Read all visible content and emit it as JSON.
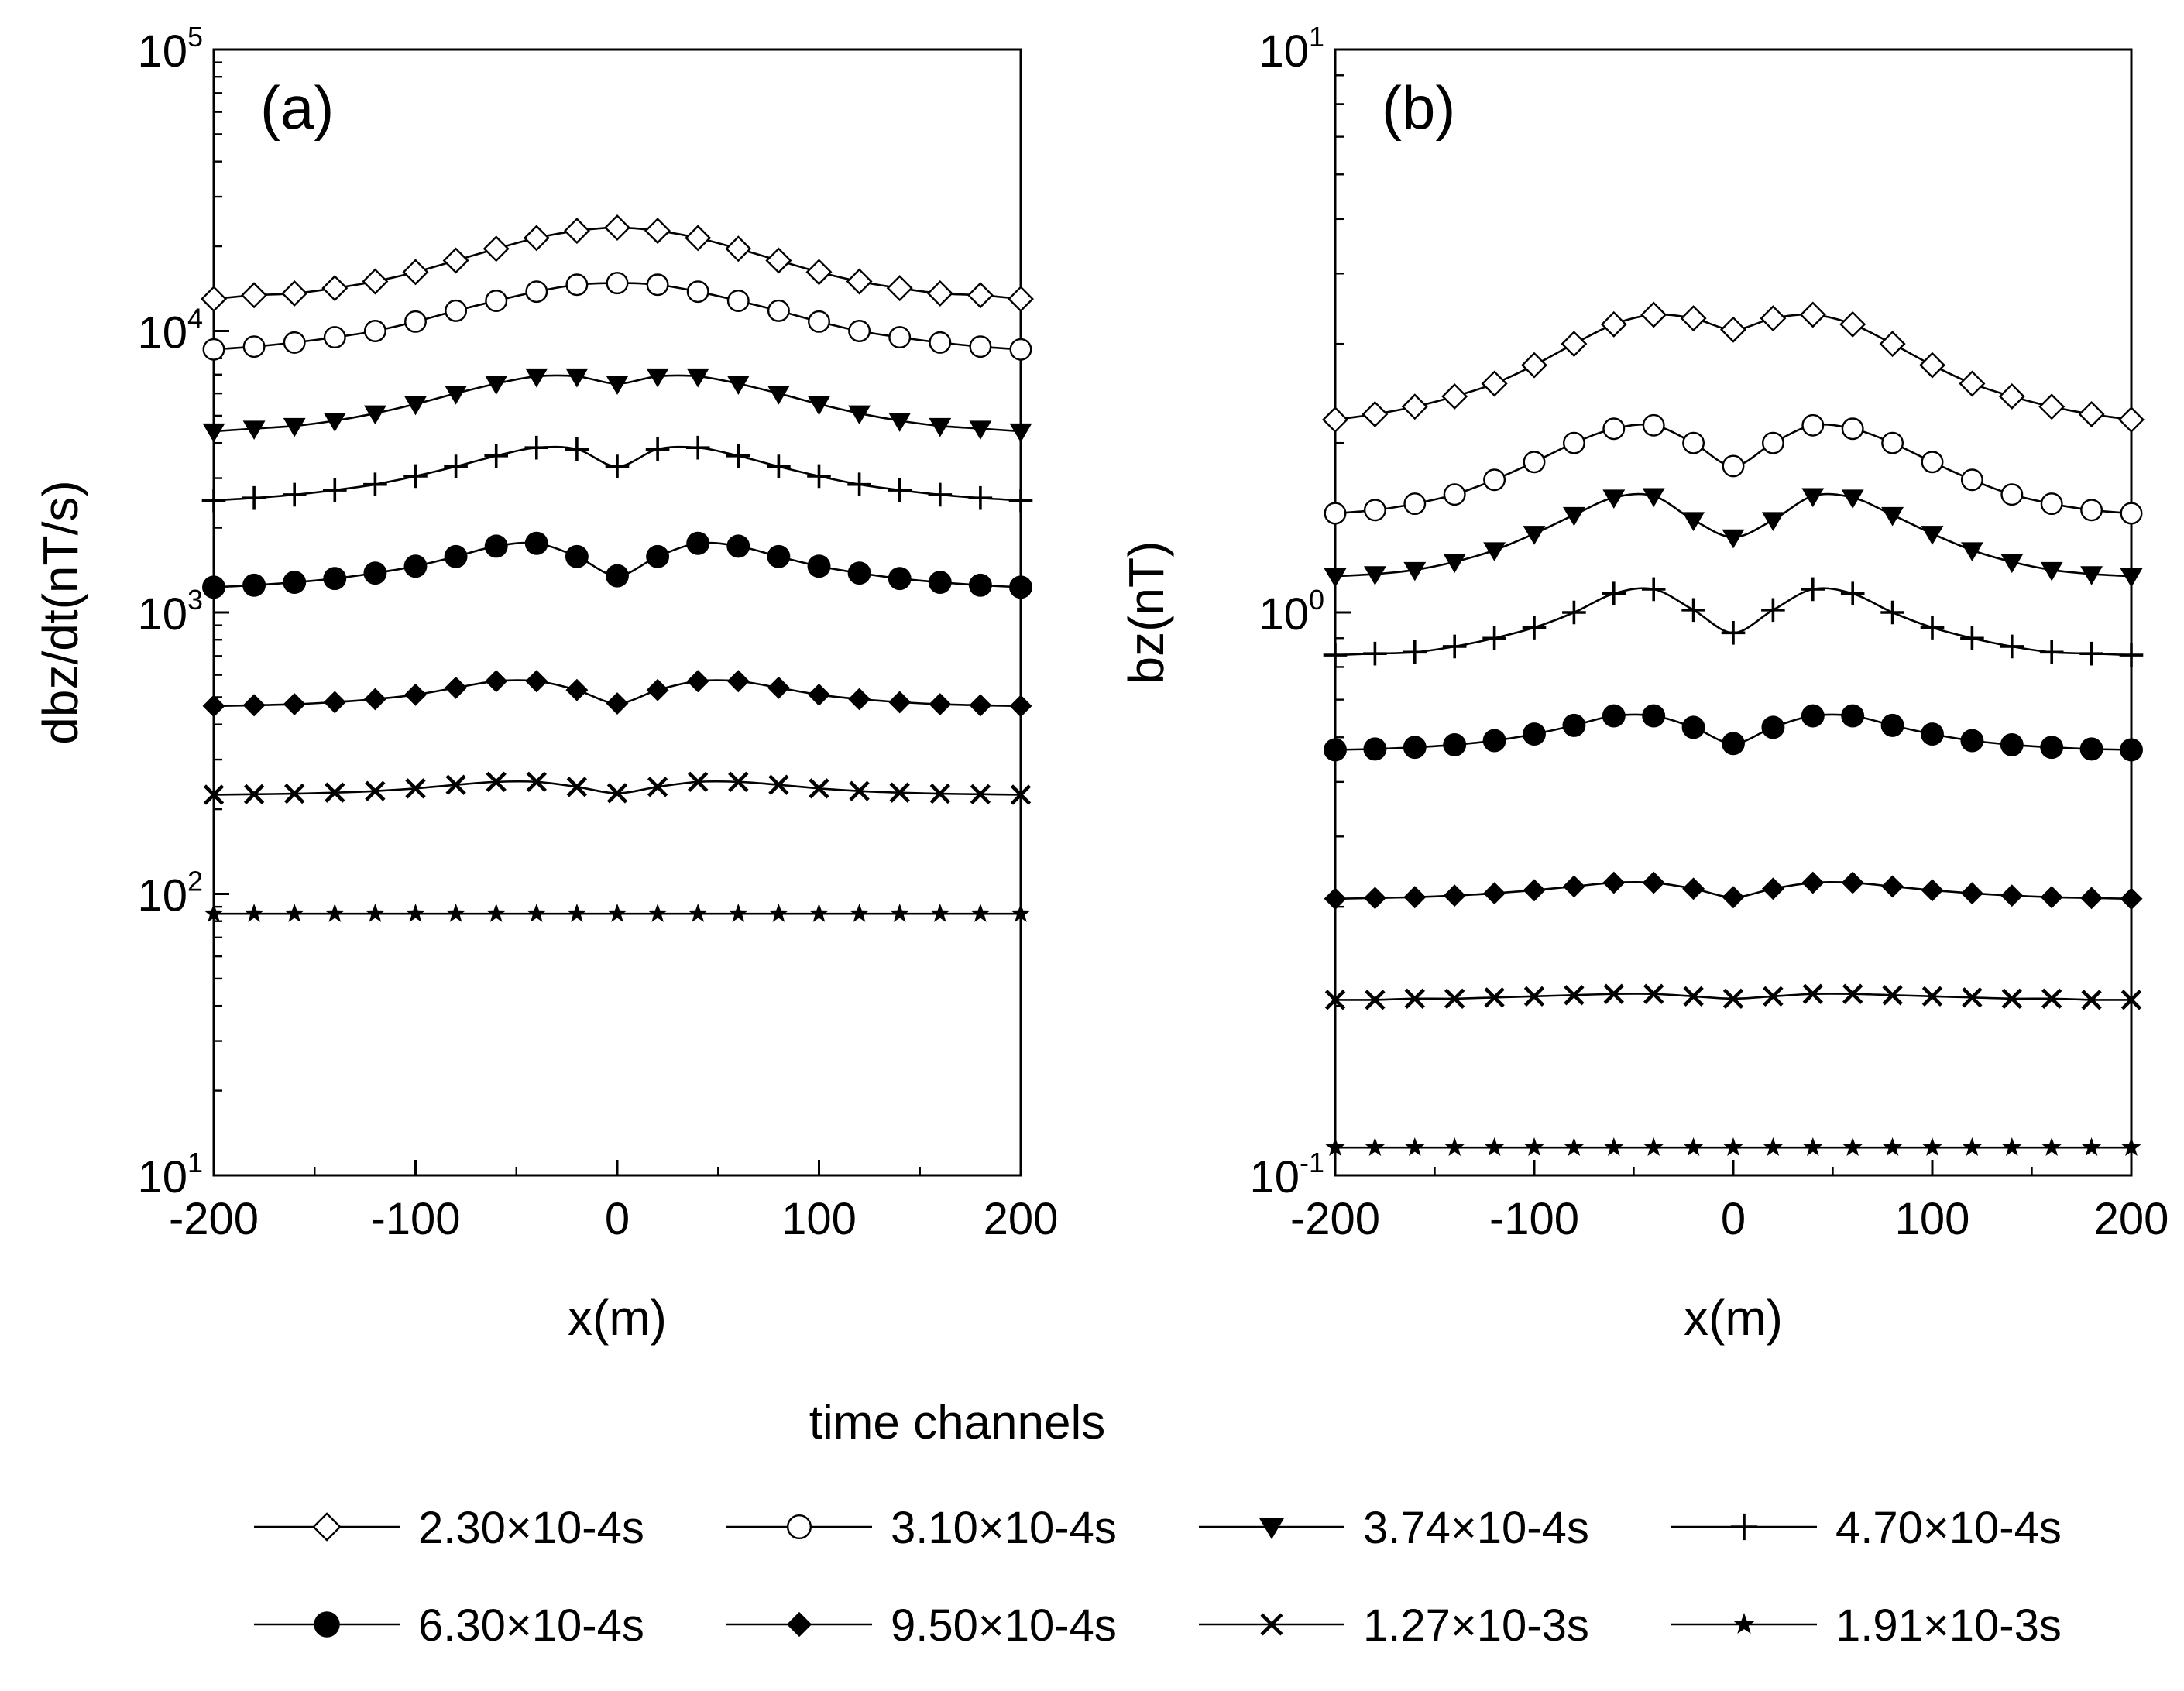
{
  "chart_data": [
    {
      "type": "line",
      "panel": "(a)",
      "xlabel": "x(m)",
      "ylabel": "dbz/dt(nT/s)",
      "xlim": [
        -200,
        200
      ],
      "ylim": [
        10,
        100000
      ],
      "yscale": "log",
      "xticks": [
        -200,
        -100,
        0,
        100,
        200
      ],
      "yticks": [
        {
          "base": "10",
          "exp": "1",
          "value": 10
        },
        {
          "base": "10",
          "exp": "2",
          "value": 100
        },
        {
          "base": "10",
          "exp": "3",
          "value": 1000
        },
        {
          "base": "10",
          "exp": "4",
          "value": 10000
        },
        {
          "base": "10",
          "exp": "5",
          "value": 100000
        }
      ],
      "x": [
        -200,
        -180,
        -160,
        -140,
        -120,
        -100,
        -80,
        -60,
        -40,
        -20,
        0,
        20,
        40,
        60,
        80,
        100,
        120,
        140,
        160,
        180,
        200
      ],
      "series": [
        {
          "name": "2.30×10-4s",
          "marker": "diamond-open",
          "values": [
            13000,
            13400,
            13600,
            14200,
            15000,
            16200,
            17800,
            19600,
            21400,
            22700,
            23300,
            22700,
            21400,
            19600,
            17800,
            16200,
            15000,
            14200,
            13600,
            13400,
            13000
          ]
        },
        {
          "name": "3.10×10-4s",
          "marker": "circle-open",
          "values": [
            8600,
            8800,
            9100,
            9500,
            10000,
            10800,
            11800,
            12800,
            13800,
            14600,
            14800,
            14600,
            13800,
            12800,
            11800,
            10800,
            10000,
            9500,
            9100,
            8800,
            8600
          ]
        },
        {
          "name": "3.74×10-4s",
          "marker": "triangle-down-filled",
          "values": [
            4400,
            4500,
            4600,
            4800,
            5100,
            5500,
            6000,
            6500,
            6900,
            6900,
            6500,
            6900,
            6900,
            6500,
            6000,
            5500,
            5100,
            4800,
            4600,
            4500,
            4400
          ]
        },
        {
          "name": "4.70×10-4s",
          "marker": "plus",
          "values": [
            2500,
            2550,
            2620,
            2720,
            2850,
            3050,
            3300,
            3600,
            3850,
            3800,
            3300,
            3800,
            3850,
            3600,
            3300,
            3050,
            2850,
            2720,
            2620,
            2550,
            2500
          ]
        },
        {
          "name": "6.30×10-4s",
          "marker": "circle-filled",
          "values": [
            1230,
            1250,
            1280,
            1320,
            1380,
            1460,
            1580,
            1720,
            1760,
            1580,
            1350,
            1580,
            1760,
            1720,
            1580,
            1460,
            1380,
            1320,
            1280,
            1250,
            1230
          ]
        },
        {
          "name": "9.50×10-4s",
          "marker": "diamond-filled",
          "values": [
            465,
            468,
            472,
            480,
            492,
            510,
            540,
            570,
            570,
            530,
            475,
            530,
            570,
            570,
            540,
            510,
            492,
            480,
            472,
            468,
            465
          ]
        },
        {
          "name": "1.27×10-3s",
          "marker": "x",
          "values": [
            225,
            226,
            227,
            229,
            232,
            237,
            244,
            250,
            250,
            240,
            228,
            240,
            250,
            250,
            244,
            237,
            232,
            229,
            227,
            226,
            225
          ]
        },
        {
          "name": "1.91×10-3s",
          "marker": "star",
          "values": [
            85,
            85,
            85,
            85,
            85,
            85,
            85,
            85,
            85,
            85,
            85,
            85,
            85,
            85,
            85,
            85,
            85,
            85,
            85,
            85,
            85
          ]
        }
      ]
    },
    {
      "type": "line",
      "panel": "(b)",
      "xlabel": "x(m)",
      "ylabel": "bz(nT)",
      "xlim": [
        -200,
        200
      ],
      "ylim": [
        0.1,
        10
      ],
      "yscale": "log",
      "xticks": [
        -200,
        -100,
        0,
        100,
        200
      ],
      "yticks": [
        {
          "base": "10",
          "exp": "-1",
          "value": 0.1
        },
        {
          "base": "10",
          "exp": "0",
          "value": 1
        },
        {
          "base": "10",
          "exp": "1",
          "value": 10
        }
      ],
      "x": [
        -200,
        -180,
        -160,
        -140,
        -120,
        -100,
        -80,
        -60,
        -40,
        -20,
        0,
        20,
        40,
        60,
        80,
        100,
        120,
        140,
        160,
        180,
        200
      ],
      "series": [
        {
          "name": "2.30×10-4s",
          "marker": "diamond-open",
          "values": [
            2.2,
            2.25,
            2.32,
            2.42,
            2.55,
            2.75,
            3.0,
            3.25,
            3.38,
            3.33,
            3.18,
            3.33,
            3.38,
            3.25,
            3.0,
            2.75,
            2.55,
            2.42,
            2.32,
            2.25,
            2.2
          ]
        },
        {
          "name": "3.10×10-4s",
          "marker": "circle-open",
          "values": [
            1.5,
            1.52,
            1.56,
            1.62,
            1.72,
            1.85,
            2.0,
            2.12,
            2.15,
            2.0,
            1.82,
            2.0,
            2.15,
            2.12,
            2.0,
            1.85,
            1.72,
            1.62,
            1.56,
            1.52,
            1.5
          ]
        },
        {
          "name": "3.74×10-4s",
          "marker": "triangle-down-filled",
          "values": [
            1.16,
            1.17,
            1.19,
            1.23,
            1.29,
            1.38,
            1.49,
            1.6,
            1.61,
            1.46,
            1.36,
            1.46,
            1.61,
            1.6,
            1.49,
            1.38,
            1.29,
            1.23,
            1.19,
            1.17,
            1.16
          ]
        },
        {
          "name": "4.70×10-4s",
          "marker": "plus",
          "values": [
            0.84,
            0.845,
            0.85,
            0.87,
            0.9,
            0.94,
            1.0,
            1.08,
            1.1,
            1.01,
            0.92,
            1.01,
            1.1,
            1.08,
            1.0,
            0.94,
            0.9,
            0.87,
            0.85,
            0.845,
            0.84
          ]
        },
        {
          "name": "6.30×10-4s",
          "marker": "circle-filled",
          "values": [
            0.57,
            0.572,
            0.576,
            0.582,
            0.592,
            0.608,
            0.63,
            0.655,
            0.655,
            0.625,
            0.585,
            0.625,
            0.655,
            0.655,
            0.63,
            0.608,
            0.592,
            0.582,
            0.576,
            0.572,
            0.57
          ]
        },
        {
          "name": "9.50×10-4s",
          "marker": "diamond-filled",
          "values": [
            0.31,
            0.311,
            0.312,
            0.314,
            0.317,
            0.321,
            0.326,
            0.331,
            0.331,
            0.323,
            0.312,
            0.323,
            0.331,
            0.331,
            0.326,
            0.321,
            0.317,
            0.314,
            0.312,
            0.311,
            0.31
          ]
        },
        {
          "name": "1.27×10-3s",
          "marker": "x",
          "values": [
            0.205,
            0.205,
            0.206,
            0.206,
            0.207,
            0.208,
            0.209,
            0.21,
            0.21,
            0.208,
            0.206,
            0.208,
            0.21,
            0.21,
            0.209,
            0.208,
            0.207,
            0.206,
            0.206,
            0.205,
            0.205
          ]
        },
        {
          "name": "1.91×10-3s",
          "marker": "star",
          "values": [
            0.112,
            0.112,
            0.112,
            0.112,
            0.112,
            0.112,
            0.112,
            0.112,
            0.112,
            0.112,
            0.112,
            0.112,
            0.112,
            0.112,
            0.112,
            0.112,
            0.112,
            0.112,
            0.112,
            0.112,
            0.112
          ]
        }
      ]
    }
  ],
  "legend": {
    "title": "time channels",
    "entries": [
      {
        "label": "2.30×10-4s",
        "marker": "diamond-open"
      },
      {
        "label": "3.10×10-4s",
        "marker": "circle-open"
      },
      {
        "label": "3.74×10-4s",
        "marker": "triangle-down-filled"
      },
      {
        "label": "4.70×10-4s",
        "marker": "plus"
      },
      {
        "label": "6.30×10-4s",
        "marker": "circle-filled"
      },
      {
        "label": "9.50×10-4s",
        "marker": "diamond-filled"
      },
      {
        "label": "1.27×10-3s",
        "marker": "x"
      },
      {
        "label": "1.91×10-3s",
        "marker": "star"
      }
    ]
  }
}
